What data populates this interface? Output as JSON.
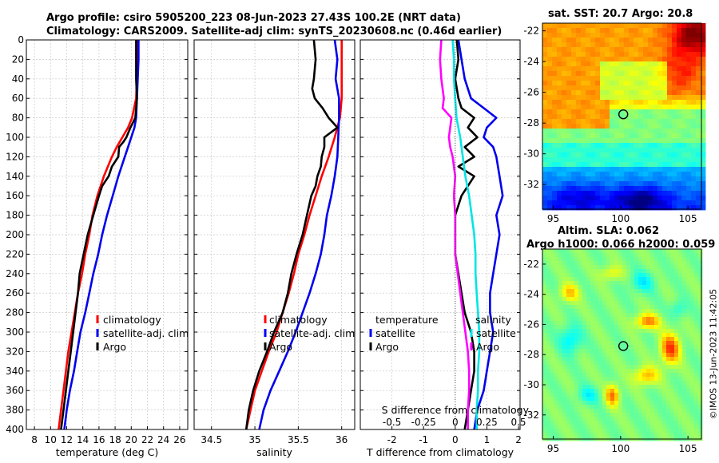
{
  "titles": {
    "main_line1": "Argo profile: csiro 5905200_223 08-Jun-2023 27.43S 100.2E (NRT data)",
    "main_line2": "Climatology: CARS2009. Satellite-adj clim: synTS_20230608.nc (0.46d earlier)",
    "sst_title": "sat. SST: 20.7 Argo: 20.8",
    "sla_title_1": "Altim. SLA: 0.062",
    "sla_title_2": "Argo h1000: 0.066 h2000: 0.059",
    "side_stamp": "©IMOS 13-Jun-2023 11:42:05"
  },
  "colors": {
    "climatology": "#ff0000",
    "satellite": "#0000ee",
    "argo": "#000000",
    "temp_diff": "#ff00ff",
    "sal_diff": "#00e5e5",
    "grid": "#c8c8c8"
  },
  "chart_data": [
    {
      "type": "line",
      "id": "temperature",
      "xlabel": "temperature (deg C)",
      "ylabel": "",
      "xlim": [
        7,
        27
      ],
      "ylim": [
        400,
        0
      ],
      "xticks": [
        8,
        10,
        12,
        14,
        16,
        18,
        20,
        22,
        24,
        26
      ],
      "yticks": [
        0,
        20,
        40,
        60,
        80,
        100,
        120,
        140,
        160,
        180,
        200,
        220,
        240,
        260,
        280,
        300,
        320,
        340,
        360,
        380,
        400
      ],
      "grid": true,
      "legend": {
        "location": "lower-right",
        "entries": [
          "climatology",
          "satellite-adj. clim",
          "Argo"
        ]
      },
      "series": [
        {
          "name": "climatology",
          "color_key": "climatology",
          "depth": [
            0,
            20,
            40,
            60,
            80,
            90,
            100,
            110,
            120,
            140,
            160,
            180,
            200,
            220,
            240,
            260,
            280,
            300,
            320,
            340,
            360,
            380,
            400
          ],
          "values": [
            20.8,
            20.8,
            20.7,
            20.6,
            20.1,
            19.6,
            18.9,
            18.2,
            17.6,
            16.6,
            15.8,
            15.2,
            14.8,
            14.3,
            13.9,
            13.4,
            13.0,
            12.6,
            12.2,
            11.9,
            11.6,
            11.3,
            11.0
          ]
        },
        {
          "name": "satellite-adj. clim",
          "color_key": "satellite",
          "depth": [
            0,
            20,
            40,
            60,
            80,
            90,
            100,
            110,
            120,
            140,
            160,
            180,
            200,
            220,
            240,
            260,
            280,
            300,
            320,
            340,
            360,
            380,
            400
          ],
          "values": [
            20.9,
            20.9,
            20.8,
            20.7,
            20.6,
            20.4,
            20.0,
            19.6,
            19.2,
            18.4,
            17.7,
            17.0,
            16.4,
            15.9,
            15.3,
            14.8,
            14.3,
            13.7,
            13.3,
            12.9,
            12.4,
            12.0,
            11.7
          ]
        },
        {
          "name": "Argo",
          "color_key": "argo",
          "depth": [
            0,
            20,
            40,
            60,
            80,
            90,
            100,
            105,
            110,
            120,
            130,
            140,
            150,
            160,
            180,
            200,
            220,
            240,
            260,
            280,
            300,
            320,
            340,
            360,
            380,
            400
          ],
          "values": [
            20.6,
            20.6,
            20.6,
            20.7,
            20.5,
            19.9,
            19.4,
            19.0,
            18.5,
            18.4,
            17.6,
            17.2,
            16.4,
            16.0,
            15.3,
            14.6,
            14.1,
            13.6,
            13.4,
            13.1,
            12.8,
            12.5,
            12.2,
            11.9,
            11.6,
            11.3
          ]
        }
      ]
    },
    {
      "type": "line",
      "id": "salinity",
      "xlabel": "salinity",
      "ylabel": "",
      "xlim": [
        34.3,
        36.15
      ],
      "ylim": [
        400,
        0
      ],
      "xticks": [
        34.5,
        35,
        35.5,
        36
      ],
      "xtick_labels": [
        "34.5",
        "35",
        "35.5",
        "36"
      ],
      "yticks": [
        0,
        20,
        40,
        60,
        80,
        100,
        120,
        140,
        160,
        180,
        200,
        220,
        240,
        260,
        280,
        300,
        320,
        340,
        360,
        380,
        400
      ],
      "grid": true,
      "legend": {
        "location": "lower-right",
        "entries": [
          "climatology",
          "satellite-adj. clim",
          "Argo"
        ]
      },
      "series": [
        {
          "name": "climatology",
          "color_key": "climatology",
          "depth": [
            0,
            20,
            40,
            60,
            80,
            100,
            120,
            140,
            160,
            180,
            200,
            220,
            240,
            260,
            280,
            300,
            320,
            340,
            360,
            380,
            400
          ],
          "values": [
            36.0,
            36.0,
            36.0,
            36.0,
            35.98,
            35.92,
            35.85,
            35.77,
            35.7,
            35.63,
            35.57,
            35.5,
            35.45,
            35.39,
            35.32,
            35.25,
            35.16,
            35.08,
            35.0,
            34.95,
            34.9
          ]
        },
        {
          "name": "satellite-adj. clim",
          "color_key": "satellite",
          "depth": [
            0,
            20,
            40,
            60,
            80,
            100,
            120,
            140,
            160,
            180,
            200,
            220,
            240,
            260,
            280,
            300,
            320,
            340,
            360,
            380,
            400
          ],
          "values": [
            35.92,
            35.95,
            35.93,
            35.97,
            35.97,
            35.96,
            35.95,
            35.92,
            35.88,
            35.83,
            35.8,
            35.76,
            35.7,
            35.63,
            35.55,
            35.47,
            35.38,
            35.28,
            35.18,
            35.1,
            35.05
          ]
        },
        {
          "name": "Argo",
          "color_key": "argo",
          "depth": [
            0,
            20,
            40,
            50,
            60,
            70,
            80,
            90,
            100,
            110,
            120,
            130,
            140,
            150,
            160,
            180,
            200,
            220,
            240,
            260,
            280,
            300,
            320,
            340,
            360,
            380,
            400
          ],
          "values": [
            35.68,
            35.7,
            35.68,
            35.66,
            35.69,
            35.78,
            35.85,
            35.95,
            35.8,
            35.8,
            35.77,
            35.76,
            35.72,
            35.7,
            35.65,
            35.6,
            35.55,
            35.48,
            35.42,
            35.38,
            35.32,
            35.22,
            35.14,
            35.05,
            34.98,
            34.93,
            34.9
          ]
        }
      ]
    },
    {
      "type": "line",
      "id": "difference",
      "xlabel": "T difference from climatology",
      "top_xlabel": "S difference from climatology",
      "ylabel": "",
      "xlim": [
        -3,
        2.05
      ],
      "ylim": [
        400,
        0
      ],
      "xticks": [
        -2,
        -1,
        0,
        1,
        2
      ],
      "xtick_labels": [
        "-2",
        "-1",
        "0",
        "1",
        "2"
      ],
      "s_xticks": [
        -0.5,
        -0.25,
        0,
        0.25,
        0.5
      ],
      "s_xtick_labels": [
        "-0.5",
        "-0.25",
        "0",
        "0.25",
        "0.5"
      ],
      "s_scale": 4,
      "yticks": [
        0,
        20,
        40,
        60,
        80,
        100,
        120,
        140,
        160,
        180,
        200,
        220,
        240,
        260,
        280,
        300,
        320,
        340,
        360,
        380,
        400
      ],
      "grid": true,
      "legend": {
        "left_header": "temperature",
        "right_header": "salinity",
        "left_entries": [
          "satellite",
          "Argo"
        ],
        "right_entries": [
          "satellite",
          "Argo"
        ]
      },
      "series": [
        {
          "name": "T satellite",
          "color_key": "satellite",
          "depth": [
            0,
            20,
            40,
            60,
            70,
            80,
            90,
            100,
            110,
            120,
            140,
            160,
            180,
            200,
            220,
            240,
            260,
            280,
            300,
            320,
            340,
            360,
            380,
            400
          ],
          "values": [
            0.1,
            0.2,
            0.3,
            0.5,
            0.9,
            1.3,
            1.0,
            0.9,
            1.2,
            1.3,
            1.4,
            1.5,
            1.3,
            1.4,
            1.3,
            1.2,
            1.1,
            1.1,
            1.2,
            1.1,
            1.0,
            0.9,
            0.7,
            0.6
          ]
        },
        {
          "name": "T Argo",
          "color_key": "argo",
          "depth": [
            0,
            20,
            40,
            60,
            70,
            80,
            90,
            100,
            110,
            120,
            130,
            140,
            160,
            180,
            200,
            220,
            240,
            260,
            280,
            300,
            320,
            340,
            360,
            380,
            400
          ],
          "values": [
            0.05,
            0.1,
            0.0,
            0.1,
            0.2,
            0.6,
            0.4,
            0.7,
            0.3,
            0.6,
            0.1,
            0.6,
            0.2,
            0.0,
            0.0,
            0.0,
            0.1,
            0.2,
            0.3,
            0.5,
            0.6,
            0.6,
            0.5,
            0.4,
            0.3
          ]
        },
        {
          "name": "S satellite",
          "color_key": "sal_diff",
          "depth": [
            0,
            20,
            40,
            60,
            80,
            100,
            120,
            140,
            160,
            180,
            200,
            220,
            240,
            260,
            280,
            300,
            320,
            340,
            360,
            380,
            400
          ],
          "values": [
            -0.02,
            -0.01,
            -0.01,
            0.0,
            0.01,
            0.04,
            0.06,
            0.08,
            0.11,
            0.13,
            0.15,
            0.16,
            0.16,
            0.17,
            0.18,
            0.19,
            0.19,
            0.18,
            0.18,
            0.17,
            0.17
          ]
        },
        {
          "name": "S Argo",
          "color_key": "temp_diff",
          "depth": [
            0,
            20,
            40,
            60,
            70,
            80,
            90,
            100,
            110,
            120,
            140,
            160,
            180,
            200,
            220,
            240,
            260,
            280,
            300,
            320,
            340,
            360,
            380,
            400
          ],
          "values": [
            -0.11,
            -0.12,
            -0.11,
            -0.09,
            -0.1,
            -0.03,
            -0.04,
            -0.05,
            -0.04,
            -0.02,
            0.0,
            -0.01,
            0.0,
            0.0,
            0.0,
            0.02,
            0.04,
            0.06,
            0.08,
            0.1,
            0.11,
            0.11,
            0.1,
            0.1
          ]
        }
      ]
    },
    {
      "type": "heatmap",
      "id": "sst_map",
      "title": "sat. SST: 20.7 Argo: 20.8",
      "xlim": [
        94.2,
        106.0
      ],
      "ylim": [
        -33.6,
        -21.5
      ],
      "xticks": [
        95,
        100,
        105
      ],
      "yticks": [
        -22,
        -24,
        -26,
        -28,
        -30,
        -32
      ],
      "marker": {
        "lon": 100.2,
        "lat": -27.43
      },
      "colorscale": "jet",
      "regions": [
        {
          "label": "warm north-east",
          "lon": 105,
          "lat": -22.3,
          "value": 1.0
        },
        {
          "label": "warm north",
          "lon": 100,
          "lat": -23.5,
          "value": 0.72
        },
        {
          "label": "yellow band west",
          "lon": 96,
          "lat": -26,
          "value": 0.7
        },
        {
          "label": "green centre",
          "lon": 102,
          "lat": -28,
          "value": 0.55
        },
        {
          "label": "teal south-west",
          "lon": 96,
          "lat": -31,
          "value": 0.42
        },
        {
          "label": "cold south",
          "lon": 101,
          "lat": -32.8,
          "value": 0.15
        }
      ]
    },
    {
      "type": "heatmap",
      "id": "sla_map",
      "title": "Altim. SLA: 0.062",
      "subtitle": "Argo h1000: 0.066 h2000: 0.059",
      "xlim": [
        94.2,
        106.0
      ],
      "ylim": [
        -33.6,
        -21.0
      ],
      "xticks": [
        95,
        100,
        105
      ],
      "yticks": [
        -22,
        -24,
        -26,
        -28,
        -30,
        -32
      ],
      "marker": {
        "lon": 100.2,
        "lat": -27.43
      },
      "colorscale": "jet",
      "regions": [
        {
          "label": "high east",
          "lon": 103.5,
          "lat": -27.6,
          "value": 0.85
        },
        {
          "label": "high south",
          "lon": 99.5,
          "lat": -30.8,
          "value": 0.8
        },
        {
          "label": "low west",
          "lon": 96,
          "lat": -27,
          "value": 0.35
        },
        {
          "label": "low north",
          "lon": 101,
          "lat": -23,
          "value": 0.38
        }
      ]
    }
  ]
}
